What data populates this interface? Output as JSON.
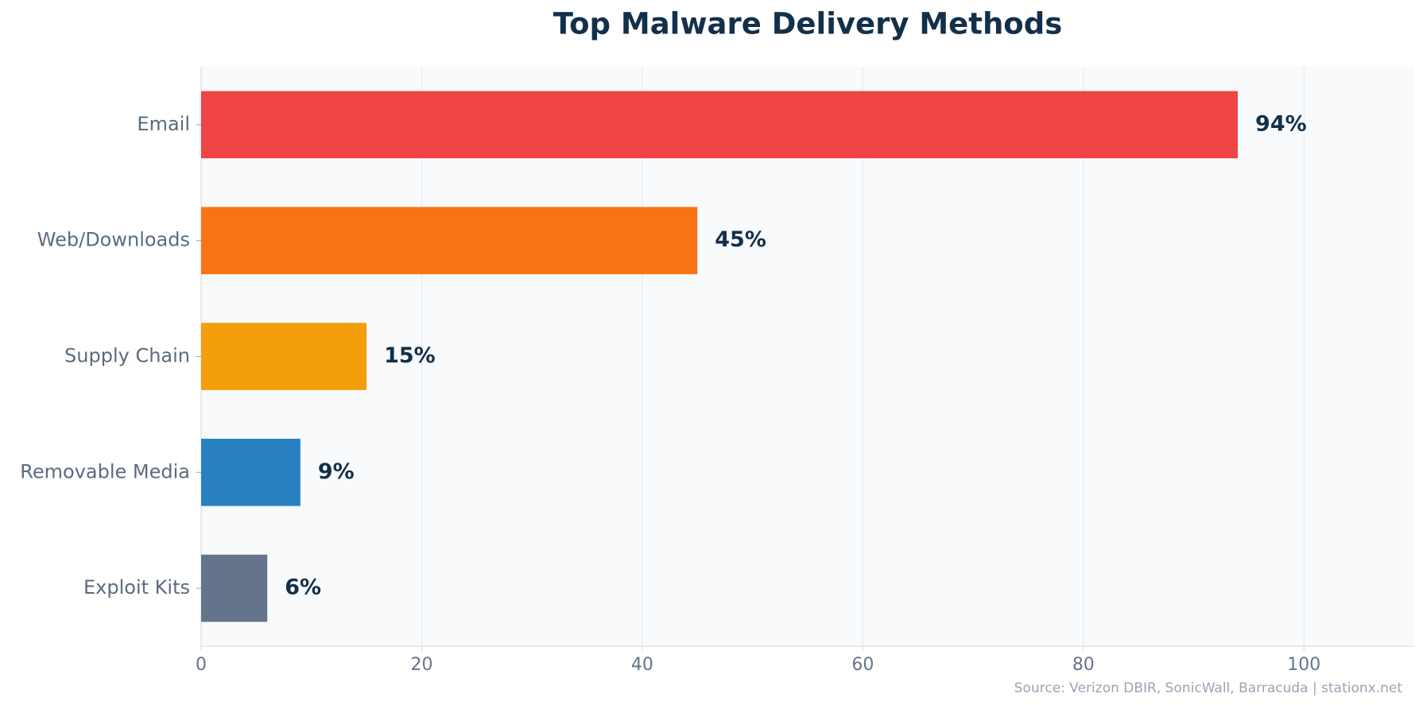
{
  "chart_data": {
    "type": "hbar",
    "title": "Top Malware Delivery Methods",
    "categories": [
      "Email",
      "Web/Downloads",
      "Supply Chain",
      "Removable Media",
      "Exploit Kits"
    ],
    "values": [
      94,
      45,
      15,
      9,
      6
    ],
    "value_labels": [
      "94%",
      "45%",
      "15%",
      "9%",
      "6%"
    ],
    "colors": [
      "#ef4444",
      "#f97316",
      "#f59e0b",
      "#2980c1",
      "#64748b"
    ],
    "xlim": [
      0,
      110
    ],
    "xticks": [
      0,
      20,
      40,
      60,
      80,
      100
    ],
    "grid": true,
    "source": "Source: Verizon DBIR, SonicWall, Barracuda | stationx.net"
  }
}
